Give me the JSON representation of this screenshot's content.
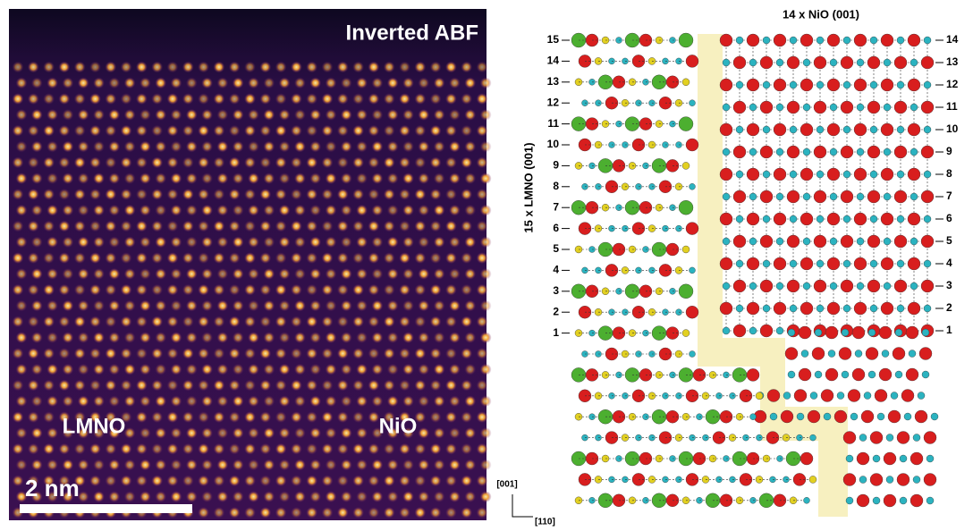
{
  "image": {
    "title": "Inverted ABF",
    "labels": [
      "LMNO",
      "NiO"
    ],
    "scale_bar": "2 nm"
  },
  "structure": {
    "top_label": "14 x NiO (001)",
    "side_label": "15 x LMNO (001)",
    "left_layers": [
      15,
      14,
      13,
      12,
      11,
      10,
      9,
      8,
      7,
      6,
      5,
      4,
      3,
      2,
      1
    ],
    "right_layers": [
      14,
      13,
      12,
      11,
      10,
      9,
      8,
      7,
      6,
      5,
      4,
      3,
      2,
      1
    ],
    "axes": [
      "[001]",
      "[110]"
    ]
  }
}
